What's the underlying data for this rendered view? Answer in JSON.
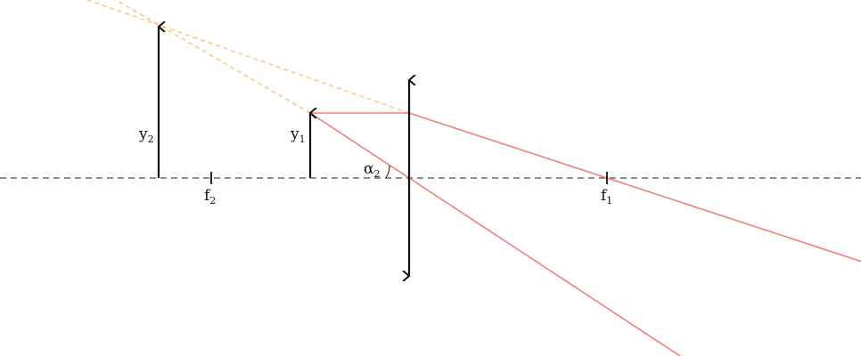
{
  "diagram": {
    "colors": {
      "axis": "#666666",
      "ray": "#f47c7c",
      "virtual_ray": "#fbc580",
      "arrow": "#111111"
    },
    "labels": {
      "image_height": {
        "main": "y",
        "sub": "2"
      },
      "object_height": {
        "main": "y",
        "sub": "1"
      },
      "focal_left": {
        "main": "f",
        "sub": "2"
      },
      "focal_right": {
        "main": "f",
        "sub": "1"
      },
      "angle": {
        "main": "α",
        "sub": "2"
      }
    }
  }
}
